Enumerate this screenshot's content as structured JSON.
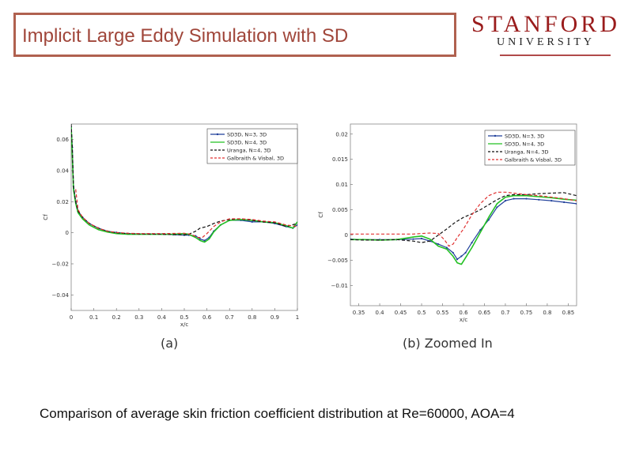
{
  "slide": {
    "title": "Implicit Large Eddy Simulation with SD",
    "logo_main": "STANFORD",
    "logo_sub": "UNIVERSITY",
    "caption": "Comparison of average skin friction coefficient distribution at Re=60000, AOA=4"
  },
  "colors": {
    "title": "#a0463a",
    "logo": "#9a1c1c",
    "series": [
      "#1f3f9a",
      "#22c022",
      "#111111",
      "#e03030"
    ]
  },
  "chart_data": [
    {
      "type": "line",
      "label": "(a)",
      "xlabel": "x/c",
      "ylabel": "Cf",
      "xlim": [
        0,
        1
      ],
      "ylim": [
        -0.05,
        0.07
      ],
      "xticks": [
        0,
        0.1,
        0.2,
        0.3,
        0.4,
        0.5,
        0.6,
        0.7,
        0.8,
        0.9,
        1
      ],
      "xtick_labels": [
        "0",
        "0.1",
        "0.2",
        "0.3",
        "0.4",
        "0.5",
        "0.6",
        "0.7",
        "0.8",
        "0.9",
        "1"
      ],
      "yticks": [
        -0.04,
        -0.02,
        0,
        0.02,
        0.04,
        0.06
      ],
      "ytick_labels": [
        "−0.04",
        "−0.02",
        "0",
        "0.02",
        "0.04",
        "0.06"
      ],
      "legend_position": "top-right",
      "series": [
        {
          "name": "SD3D, N=3, 3D",
          "style": "solid-marker",
          "x": [
            0,
            0.005,
            0.01,
            0.02,
            0.03,
            0.05,
            0.08,
            0.12,
            0.16,
            0.2,
            0.25,
            0.3,
            0.35,
            0.4,
            0.45,
            0.5,
            0.52,
            0.55,
            0.57,
            0.59,
            0.61,
            0.63,
            0.66,
            0.7,
            0.75,
            0.8,
            0.85,
            0.9,
            0.95,
            0.98,
            1.0
          ],
          "y": [
            0.068,
            0.055,
            0.03,
            0.02,
            0.014,
            0.01,
            0.006,
            0.003,
            0.001,
            0.0002,
            -0.0005,
            -0.0008,
            -0.0009,
            -0.0009,
            -0.0012,
            -0.0015,
            -0.0015,
            -0.002,
            -0.004,
            -0.005,
            -0.003,
            0.001,
            0.005,
            0.008,
            0.008,
            0.007,
            0.007,
            0.006,
            0.004,
            0.003,
            0.005
          ]
        },
        {
          "name": "SD3D, N=4, 3D",
          "style": "solid",
          "x": [
            0,
            0.005,
            0.01,
            0.02,
            0.03,
            0.05,
            0.08,
            0.12,
            0.16,
            0.2,
            0.25,
            0.3,
            0.35,
            0.4,
            0.45,
            0.5,
            0.52,
            0.55,
            0.57,
            0.59,
            0.61,
            0.63,
            0.66,
            0.7,
            0.75,
            0.8,
            0.85,
            0.9,
            0.95,
            0.98,
            1.0
          ],
          "y": [
            0.068,
            0.05,
            0.028,
            0.019,
            0.013,
            0.009,
            0.005,
            0.002,
            0.0005,
            -0.0005,
            -0.001,
            -0.001,
            -0.001,
            -0.001,
            -0.001,
            -0.0005,
            -0.001,
            -0.003,
            -0.005,
            -0.006,
            -0.004,
            0.0005,
            0.005,
            0.008,
            0.0085,
            0.008,
            0.007,
            0.0065,
            0.0045,
            0.003,
            0.007
          ]
        },
        {
          "name": "Uranga, N=4, 3D",
          "style": "dashed",
          "x": [
            0,
            0.005,
            0.01,
            0.02,
            0.03,
            0.05,
            0.08,
            0.12,
            0.16,
            0.2,
            0.25,
            0.3,
            0.35,
            0.4,
            0.45,
            0.5,
            0.52,
            0.55,
            0.57,
            0.6,
            0.63,
            0.66,
            0.7,
            0.75,
            0.8,
            0.85,
            0.9,
            0.95,
            1.0
          ],
          "y": [
            0.07,
            0.055,
            0.03,
            0.02,
            0.014,
            0.01,
            0.006,
            0.003,
            0.001,
            0.0,
            -0.0005,
            -0.0008,
            -0.0009,
            -0.001,
            -0.0012,
            -0.0014,
            -0.001,
            0.001,
            0.003,
            0.004,
            0.006,
            0.0075,
            0.0085,
            0.009,
            0.008,
            0.007,
            0.0065,
            0.004,
            0.006
          ]
        },
        {
          "name": "Galbraith & Visbal, 3D",
          "style": "dashed",
          "x": [
            0.02,
            0.03,
            0.05,
            0.08,
            0.12,
            0.16,
            0.2,
            0.25,
            0.3,
            0.35,
            0.4,
            0.45,
            0.5,
            0.53,
            0.56,
            0.58,
            0.6,
            0.63,
            0.66,
            0.7,
            0.75,
            0.8,
            0.85,
            0.9,
            0.95,
            1.0
          ],
          "y": [
            0.028,
            0.015,
            0.01,
            0.006,
            0.003,
            0.001,
            0.0002,
            -0.0003,
            -0.0005,
            -0.0005,
            -0.0005,
            -0.0004,
            -0.0003,
            -0.001,
            -0.003,
            -0.003,
            -0.0005,
            0.004,
            0.007,
            0.009,
            0.009,
            0.0085,
            0.0075,
            0.007,
            0.005,
            0.004
          ]
        }
      ]
    },
    {
      "type": "line",
      "label": "(b) Zoomed In",
      "xlabel": "x/c",
      "ylabel": "Cf",
      "xlim": [
        0.33,
        0.87
      ],
      "ylim": [
        -0.014,
        0.022
      ],
      "xticks": [
        0.35,
        0.4,
        0.45,
        0.5,
        0.55,
        0.6,
        0.65,
        0.7,
        0.75,
        0.8,
        0.85
      ],
      "xtick_labels": [
        "0.35",
        "0.4",
        "0.45",
        "0.5",
        "0.55",
        "0.6",
        "0.65",
        "0.7",
        "0.75",
        "0.8",
        "0.85"
      ],
      "yticks": [
        -0.01,
        -0.005,
        0,
        0.005,
        0.01,
        0.015,
        0.02
      ],
      "ytick_labels": [
        "−0.01",
        "−0.005",
        "0",
        "0.005",
        "0.01",
        "0.015",
        "0.02"
      ],
      "legend_position": "top-right",
      "series": [
        {
          "name": "SD3D, N=3, 3D",
          "style": "solid-marker",
          "x": [
            0.33,
            0.36,
            0.4,
            0.44,
            0.48,
            0.5,
            0.52,
            0.54,
            0.56,
            0.575,
            0.585,
            0.595,
            0.605,
            0.62,
            0.64,
            0.66,
            0.68,
            0.7,
            0.72,
            0.75,
            0.78,
            0.81,
            0.84,
            0.87
          ],
          "y": [
            -0.0008,
            -0.0009,
            -0.0009,
            -0.0009,
            -0.0008,
            -0.0007,
            -0.0012,
            -0.0018,
            -0.0025,
            -0.0035,
            -0.0048,
            -0.0042,
            -0.0035,
            -0.0015,
            0.001,
            0.003,
            0.0055,
            0.0068,
            0.0072,
            0.0072,
            0.007,
            0.0068,
            0.0065,
            0.0062
          ]
        },
        {
          "name": "SD3D, N=4, 3D",
          "style": "solid",
          "x": [
            0.33,
            0.36,
            0.4,
            0.44,
            0.48,
            0.5,
            0.52,
            0.54,
            0.56,
            0.575,
            0.585,
            0.595,
            0.605,
            0.62,
            0.64,
            0.66,
            0.68,
            0.7,
            0.72,
            0.75,
            0.78,
            0.81,
            0.84,
            0.87
          ],
          "y": [
            -0.0009,
            -0.0009,
            -0.001,
            -0.0009,
            -0.0004,
            -0.0002,
            -0.0008,
            -0.0022,
            -0.0028,
            -0.0042,
            -0.0055,
            -0.0058,
            -0.0045,
            -0.0025,
            0.0005,
            0.0035,
            0.0062,
            0.0075,
            0.0078,
            0.0078,
            0.0076,
            0.0074,
            0.0071,
            0.0069
          ]
        },
        {
          "name": "Uranga, N=4, 3D",
          "style": "dashed",
          "x": [
            0.33,
            0.36,
            0.4,
            0.44,
            0.48,
            0.5,
            0.52,
            0.54,
            0.56,
            0.58,
            0.6,
            0.62,
            0.64,
            0.66,
            0.68,
            0.7,
            0.72,
            0.75,
            0.78,
            0.81,
            0.84,
            0.87
          ],
          "y": [
            -0.0009,
            -0.001,
            -0.001,
            -0.0009,
            -0.0012,
            -0.0015,
            -0.0012,
            0.0,
            0.0012,
            0.0025,
            0.0035,
            0.0042,
            0.005,
            0.006,
            0.007,
            0.0078,
            0.008,
            0.008,
            0.0082,
            0.0083,
            0.0084,
            0.0078
          ]
        },
        {
          "name": "Galbraith & Visbal, 3D",
          "style": "dashed",
          "x": [
            0.33,
            0.36,
            0.4,
            0.44,
            0.48,
            0.5,
            0.52,
            0.54,
            0.555,
            0.565,
            0.575,
            0.585,
            0.6,
            0.62,
            0.64,
            0.66,
            0.68,
            0.7,
            0.72,
            0.75,
            0.78,
            0.81,
            0.84,
            0.87
          ],
          "y": [
            0.0002,
            0.0002,
            0.0002,
            0.0002,
            0.0002,
            0.0003,
            0.0004,
            0.0003,
            -0.001,
            -0.0022,
            -0.0018,
            -0.0005,
            0.0012,
            0.004,
            0.0062,
            0.0078,
            0.0085,
            0.0085,
            0.0083,
            0.008,
            0.0078,
            0.0075,
            0.0072,
            0.0068
          ]
        }
      ]
    }
  ]
}
